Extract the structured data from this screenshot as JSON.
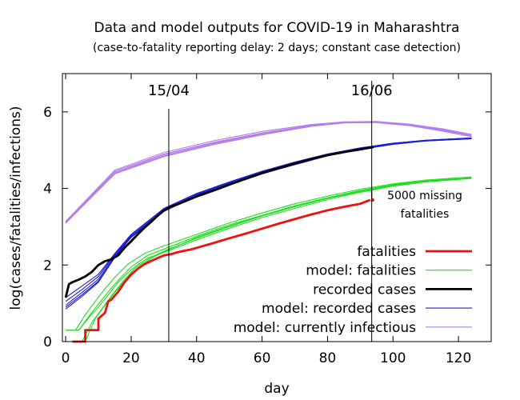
{
  "chart_data": {
    "type": "line",
    "title": "Data and model outputs for COVID-19 in Maharashtra",
    "subtitle": "(case-to-fatality reporting delay: 2 days; constant case detection)",
    "xlabel": "day",
    "ylabel": "log(cases/fatalities/infections)",
    "xlim": [
      -1,
      130
    ],
    "ylim": [
      0,
      7
    ],
    "xticks": [
      0,
      20,
      40,
      60,
      80,
      100,
      120
    ],
    "yticks": [
      0,
      2,
      4,
      6
    ],
    "grid": false,
    "legend_position": "bottom-right",
    "vlines": [
      {
        "x": 31.5,
        "label": "15/04"
      },
      {
        "x": 93.5,
        "label": "16/06"
      }
    ],
    "annotation": {
      "lines": [
        "5000 missing",
        "fatalities"
      ],
      "x": 93.5,
      "y_from": 3.7,
      "y_to": 3.97
    },
    "series": [
      {
        "name": "model: currently infectious",
        "color": "#b47ee8",
        "width": 1.1,
        "variants": [
          {
            "x": [
              0,
              15,
              30,
              45,
              60,
              75,
              85,
              95,
              105,
              115,
              124
            ],
            "y": [
              3.1,
              4.4,
              4.85,
              5.16,
              5.42,
              5.63,
              5.72,
              5.72,
              5.64,
              5.5,
              5.35
            ]
          },
          {
            "x": [
              0,
              15,
              30,
              45,
              60,
              75,
              85,
              95,
              105,
              115,
              124
            ],
            "y": [
              3.12,
              4.45,
              4.9,
              5.2,
              5.45,
              5.65,
              5.73,
              5.74,
              5.66,
              5.53,
              5.38
            ]
          },
          {
            "x": [
              0,
              15,
              30,
              45,
              60,
              75,
              85,
              95,
              105,
              115,
              124
            ],
            "y": [
              3.14,
              4.48,
              4.94,
              5.24,
              5.49,
              5.67,
              5.74,
              5.75,
              5.68,
              5.56,
              5.41
            ]
          },
          {
            "x": [
              0,
              15,
              30,
              45,
              60,
              75,
              85,
              95,
              105,
              115,
              124
            ],
            "y": [
              3.11,
              4.42,
              4.88,
              5.18,
              5.44,
              5.64,
              5.73,
              5.73,
              5.65,
              5.51,
              5.36
            ]
          },
          {
            "x": [
              0,
              15,
              30,
              45,
              60,
              75,
              85,
              95,
              105,
              115,
              124
            ],
            "y": [
              3.09,
              4.38,
              4.83,
              5.14,
              5.4,
              5.62,
              5.71,
              5.73,
              5.66,
              5.54,
              5.4
            ]
          }
        ]
      },
      {
        "name": "model: recorded cases",
        "color": "#1c1cd6",
        "width": 1.1,
        "variants": [
          {
            "x": [
              0,
              5,
              10,
              15,
              20,
              30,
              40,
              50,
              60,
              70,
              80,
              90,
              100,
              110,
              124
            ],
            "y": [
              0.85,
              1.18,
              1.55,
              2.2,
              2.72,
              3.4,
              3.8,
              4.1,
              4.38,
              4.62,
              4.85,
              5.02,
              5.15,
              5.24,
              5.3
            ]
          },
          {
            "x": [
              0,
              5,
              10,
              15,
              20,
              30,
              40,
              50,
              60,
              70,
              80,
              90,
              100,
              110,
              124
            ],
            "y": [
              0.95,
              1.28,
              1.63,
              2.25,
              2.76,
              3.44,
              3.84,
              4.14,
              4.42,
              4.66,
              4.88,
              5.04,
              5.17,
              5.25,
              5.31
            ]
          },
          {
            "x": [
              0,
              5,
              10,
              15,
              20,
              30,
              40,
              50,
              60,
              70,
              80,
              90,
              100,
              110,
              124
            ],
            "y": [
              1.05,
              1.36,
              1.7,
              2.28,
              2.79,
              3.47,
              3.86,
              4.16,
              4.44,
              4.68,
              4.9,
              5.05,
              5.18,
              5.26,
              5.32
            ]
          },
          {
            "x": [
              0,
              5,
              10,
              15,
              20,
              30,
              40,
              50,
              60,
              70,
              80,
              90,
              100,
              110,
              124
            ],
            "y": [
              1.15,
              1.45,
              1.76,
              2.3,
              2.8,
              3.48,
              3.87,
              4.17,
              4.45,
              4.69,
              4.9,
              5.06,
              5.18,
              5.26,
              5.32
            ]
          },
          {
            "x": [
              0,
              5,
              10,
              15,
              20,
              30,
              40,
              50,
              60,
              70,
              80,
              90,
              100,
              110,
              124
            ],
            "y": [
              0.9,
              1.22,
              1.58,
              2.22,
              2.74,
              3.42,
              3.82,
              4.12,
              4.4,
              4.64,
              4.86,
              5.03,
              5.16,
              5.24,
              5.3
            ]
          }
        ]
      },
      {
        "name": "recorded cases",
        "color": "#000000",
        "width": 2.8,
        "x": [
          0,
          1,
          2,
          4,
          6,
          8,
          10,
          12,
          14,
          16,
          18,
          20,
          22,
          24,
          26,
          28,
          30,
          32,
          34,
          36,
          38,
          40,
          45,
          50,
          55,
          60,
          65,
          70,
          75,
          80,
          85,
          90,
          94
        ],
        "y": [
          1.15,
          1.5,
          1.55,
          1.62,
          1.7,
          1.82,
          2.0,
          2.1,
          2.15,
          2.25,
          2.45,
          2.62,
          2.8,
          2.97,
          3.12,
          3.28,
          3.42,
          3.52,
          3.58,
          3.65,
          3.72,
          3.79,
          3.94,
          4.1,
          4.25,
          4.4,
          4.53,
          4.65,
          4.77,
          4.87,
          4.95,
          5.02,
          5.08
        ]
      },
      {
        "name": "model: fatalities",
        "color": "#22dd22",
        "width": 1.1,
        "variants": [
          {
            "x": [
              0,
              4,
              7,
              10,
              13,
              16,
              20,
              25,
              31,
              40,
              50,
              60,
              70,
              80,
              90,
              100,
              110,
              124
            ],
            "y": [
              0.3,
              0.3,
              0.65,
              0.98,
              1.3,
              1.6,
              1.95,
              2.25,
              2.45,
              2.75,
              3.05,
              3.3,
              3.55,
              3.76,
              3.95,
              4.1,
              4.2,
              4.28
            ]
          },
          {
            "x": [
              0,
              5,
              8,
              11,
              14,
              17,
              21,
              26,
              31,
              40,
              50,
              60,
              70,
              80,
              90,
              100,
              110,
              124
            ],
            "y": [
              0.0,
              0.0,
              0.5,
              0.85,
              1.2,
              1.52,
              1.9,
              2.2,
              2.4,
              2.7,
              3.0,
              3.28,
              3.52,
              3.74,
              3.92,
              4.08,
              4.18,
              4.27
            ]
          },
          {
            "x": [
              0,
              3,
              6,
              9,
              12,
              15,
              19,
              24,
              30,
              40,
              50,
              60,
              70,
              80,
              90,
              100,
              110,
              124
            ],
            "y": [
              0.3,
              0.3,
              0.7,
              1.05,
              1.38,
              1.68,
              2.02,
              2.3,
              2.5,
              2.8,
              3.1,
              3.36,
              3.6,
              3.8,
              3.98,
              4.12,
              4.22,
              4.3
            ]
          },
          {
            "x": [
              0,
              6,
              9,
              12,
              15,
              18,
              22,
              27,
              32,
              40,
              50,
              60,
              70,
              80,
              90,
              100,
              110,
              124
            ],
            "y": [
              0.0,
              0.0,
              0.6,
              0.95,
              1.28,
              1.58,
              1.92,
              2.22,
              2.42,
              2.72,
              3.02,
              3.29,
              3.53,
              3.75,
              3.93,
              4.09,
              4.19,
              4.28
            ]
          },
          {
            "x": [
              0,
              4,
              7,
              10,
              13,
              16,
              20,
              25,
              31,
              40,
              50,
              60,
              70,
              80,
              90,
              100,
              110,
              124
            ],
            "y": [
              0.3,
              0.3,
              0.62,
              0.9,
              1.22,
              1.55,
              1.88,
              2.18,
              2.36,
              2.66,
              2.96,
              3.24,
              3.48,
              3.71,
              3.9,
              4.06,
              4.17,
              4.26
            ]
          }
        ]
      },
      {
        "name": "fatalities",
        "color": "#ee1111",
        "width": 2.8,
        "x": [
          2,
          3,
          6,
          6,
          7,
          8,
          10,
          10,
          12,
          13,
          14,
          16,
          18,
          20,
          22,
          24,
          26,
          28,
          30,
          32,
          34,
          36,
          38,
          40,
          45,
          50,
          55,
          60,
          65,
          70,
          75,
          80,
          85,
          90,
          93
        ],
        "y": [
          0,
          0,
          0,
          0.3,
          0.3,
          0.3,
          0.3,
          0.6,
          0.75,
          1.05,
          1.1,
          1.3,
          1.55,
          1.75,
          1.9,
          2.02,
          2.1,
          2.18,
          2.25,
          2.28,
          2.33,
          2.37,
          2.4,
          2.45,
          2.57,
          2.7,
          2.82,
          2.95,
          3.08,
          3.2,
          3.32,
          3.43,
          3.52,
          3.6,
          3.7
        ]
      }
    ]
  }
}
